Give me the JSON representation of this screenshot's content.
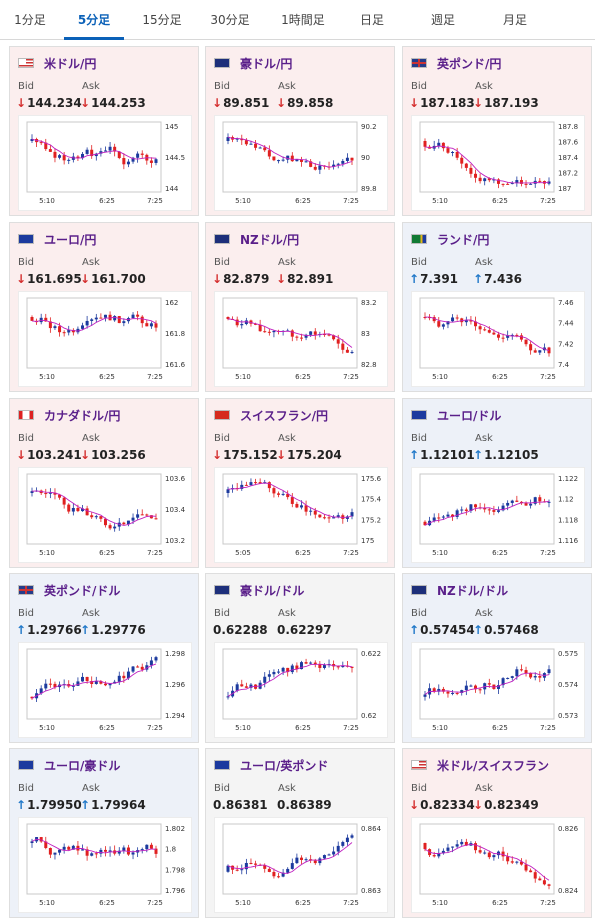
{
  "tabs": [
    {
      "label": "1分足",
      "active": false
    },
    {
      "label": "5分足",
      "active": true
    },
    {
      "label": "15分足",
      "active": false
    },
    {
      "label": "30分足",
      "active": false
    },
    {
      "label": "1時間足",
      "active": false
    },
    {
      "label": "日足",
      "active": false
    },
    {
      "label": "週足",
      "active": false
    },
    {
      "label": "月足",
      "active": false
    }
  ],
  "labels": {
    "bid": "Bid",
    "ask": "Ask"
  },
  "colors": {
    "up_candle": "#1c3a9e",
    "down_candle": "#e02020",
    "ma": "#c020c0",
    "up_arrow": "#1f77c8",
    "down_arrow": "#d53030"
  },
  "cards": [
    {
      "pair": "米ドル/円",
      "flag": "us",
      "dir": "down",
      "bid": "144.234",
      "ask": "144.253",
      "arrow": "↓",
      "yticks": [
        "145",
        "144.5",
        "144"
      ],
      "xticks": [
        "5:10",
        "6:25",
        "7:25"
      ],
      "trend": "down"
    },
    {
      "pair": "豪ドル/円",
      "flag": "au",
      "dir": "down",
      "bid": "89.851",
      "ask": "89.858",
      "arrow": "↓",
      "yticks": [
        "90.2",
        "90",
        "89.8"
      ],
      "xticks": [
        "5:10",
        "6:25",
        "7:25"
      ],
      "trend": "down"
    },
    {
      "pair": "英ポンド/円",
      "flag": "gb",
      "dir": "down",
      "bid": "187.183",
      "ask": "187.193",
      "arrow": "↓",
      "yticks": [
        "187.8",
        "187.6",
        "187.4",
        "187.2",
        "187"
      ],
      "xticks": [
        "5:10",
        "6:25",
        "7:25"
      ],
      "trend": "down"
    },
    {
      "pair": "ユーロ/円",
      "flag": "eu",
      "dir": "down",
      "bid": "161.695",
      "ask": "161.700",
      "arrow": "↓",
      "yticks": [
        "162",
        "161.8",
        "161.6"
      ],
      "xticks": [
        "5:10",
        "6:25",
        "7:25"
      ],
      "trend": "down"
    },
    {
      "pair": "NZドル/円",
      "flag": "nz",
      "dir": "down",
      "bid": "82.879",
      "ask": "82.891",
      "arrow": "↓",
      "yticks": [
        "83.2",
        "83",
        "82.8"
      ],
      "xticks": [
        "5:10",
        "6:25",
        "7:25"
      ],
      "trend": "down"
    },
    {
      "pair": "ランド/円",
      "flag": "za",
      "dir": "up",
      "bid": "7.391",
      "ask": "7.436",
      "arrow": "↑",
      "yticks": [
        "7.46",
        "7.44",
        "7.42",
        "7.4"
      ],
      "xticks": [
        "5:10",
        "6:25",
        "7:25"
      ],
      "trend": "down"
    },
    {
      "pair": "カナダドル/円",
      "flag": "ca",
      "dir": "down",
      "bid": "103.241",
      "ask": "103.256",
      "arrow": "↓",
      "yticks": [
        "103.6",
        "103.4",
        "103.2"
      ],
      "xticks": [
        "5:10",
        "6:25",
        "7:25"
      ],
      "trend": "down"
    },
    {
      "pair": "スイスフラン/円",
      "flag": "ch",
      "dir": "down",
      "bid": "175.152",
      "ask": "175.204",
      "arrow": "↓",
      "yticks": [
        "175.6",
        "175.4",
        "175.2",
        "175"
      ],
      "xticks": [
        "5:05",
        "6:25",
        "7:25"
      ],
      "trend": "down"
    },
    {
      "pair": "ユーロ/ドル",
      "flag": "eu",
      "dir": "up",
      "bid": "1.12101",
      "ask": "1.12105",
      "arrow": "↑",
      "yticks": [
        "1.122",
        "1.12",
        "1.118",
        "1.116"
      ],
      "xticks": [
        "5:10",
        "6:25",
        "7:25"
      ],
      "trend": "up"
    },
    {
      "pair": "英ポンド/ドル",
      "flag": "gb",
      "dir": "up",
      "bid": "1.29766",
      "ask": "1.29776",
      "arrow": "↑",
      "yticks": [
        "1.298",
        "1.296",
        "1.294"
      ],
      "xticks": [
        "5:10",
        "6:25",
        "7:25"
      ],
      "trend": "up"
    },
    {
      "pair": "豪ドル/ドル",
      "flag": "au",
      "dir": "flat",
      "bid": "0.62288",
      "ask": "0.62297",
      "arrow": "",
      "yticks": [
        "0.622",
        "0.62"
      ],
      "xticks": [
        "5:10",
        "6:25",
        "7:25"
      ],
      "trend": "up"
    },
    {
      "pair": "NZドル/ドル",
      "flag": "nz",
      "dir": "up",
      "bid": "0.57454",
      "ask": "0.57468",
      "arrow": "↑",
      "yticks": [
        "0.575",
        "0.574",
        "0.573"
      ],
      "xticks": [
        "5:10",
        "6:25",
        "7:25"
      ],
      "trend": "up"
    },
    {
      "pair": "ユーロ/豪ドル",
      "flag": "eu",
      "dir": "up",
      "bid": "1.79950",
      "ask": "1.79964",
      "arrow": "↑",
      "yticks": [
        "1.802",
        "1.8",
        "1.798",
        "1.796"
      ],
      "xticks": [
        "5:10",
        "6:25",
        "7:25"
      ],
      "trend": "down"
    },
    {
      "pair": "ユーロ/英ポンド",
      "flag": "eu",
      "dir": "flat",
      "bid": "0.86381",
      "ask": "0.86389",
      "arrow": "",
      "yticks": [
        "0.864",
        "0.863"
      ],
      "xticks": [
        "5:10",
        "6:25",
        "7:25"
      ],
      "trend": "up"
    },
    {
      "pair": "米ドル/スイスフラン",
      "flag": "us",
      "dir": "down",
      "bid": "0.82334",
      "ask": "0.82349",
      "arrow": "↓",
      "yticks": [
        "0.826",
        "0.824"
      ],
      "xticks": [
        "5:10",
        "6:25",
        "7:25"
      ],
      "trend": "down"
    }
  ]
}
